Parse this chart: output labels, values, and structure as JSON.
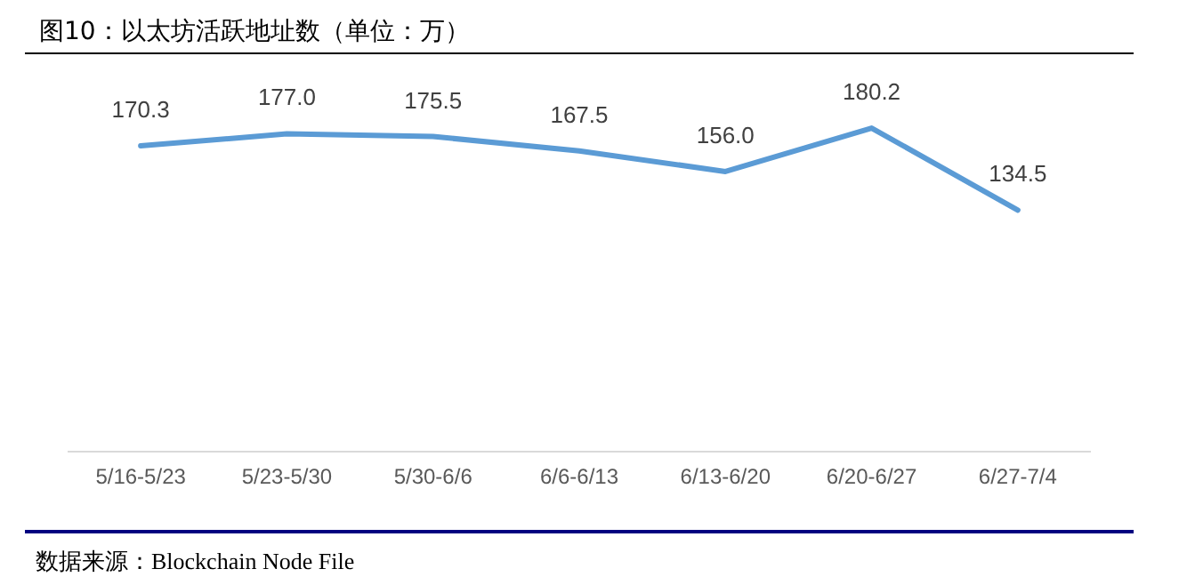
{
  "chart_data": {
    "type": "line",
    "title": "图10：以太坊活跃地址数（单位：万）",
    "categories": [
      "5/16-5/23",
      "5/23-5/30",
      "5/30-6/6",
      "6/6-6/13",
      "6/13-6/20",
      "6/20-6/27",
      "6/27-7/4"
    ],
    "series": [
      {
        "color": "#5b9bd5",
        "values": [
          170.3,
          177.0,
          175.5,
          167.5,
          156.0,
          180.2,
          134.5
        ],
        "value_labels": [
          "170.3",
          "177.0",
          "175.5",
          "167.5",
          "156.0",
          "180.2",
          "134.5"
        ]
      }
    ],
    "tick_labels": "x",
    "marker": "none",
    "line_style": "solid",
    "annotations": [
      "数据来源：Blockchain Node File"
    ]
  }
}
